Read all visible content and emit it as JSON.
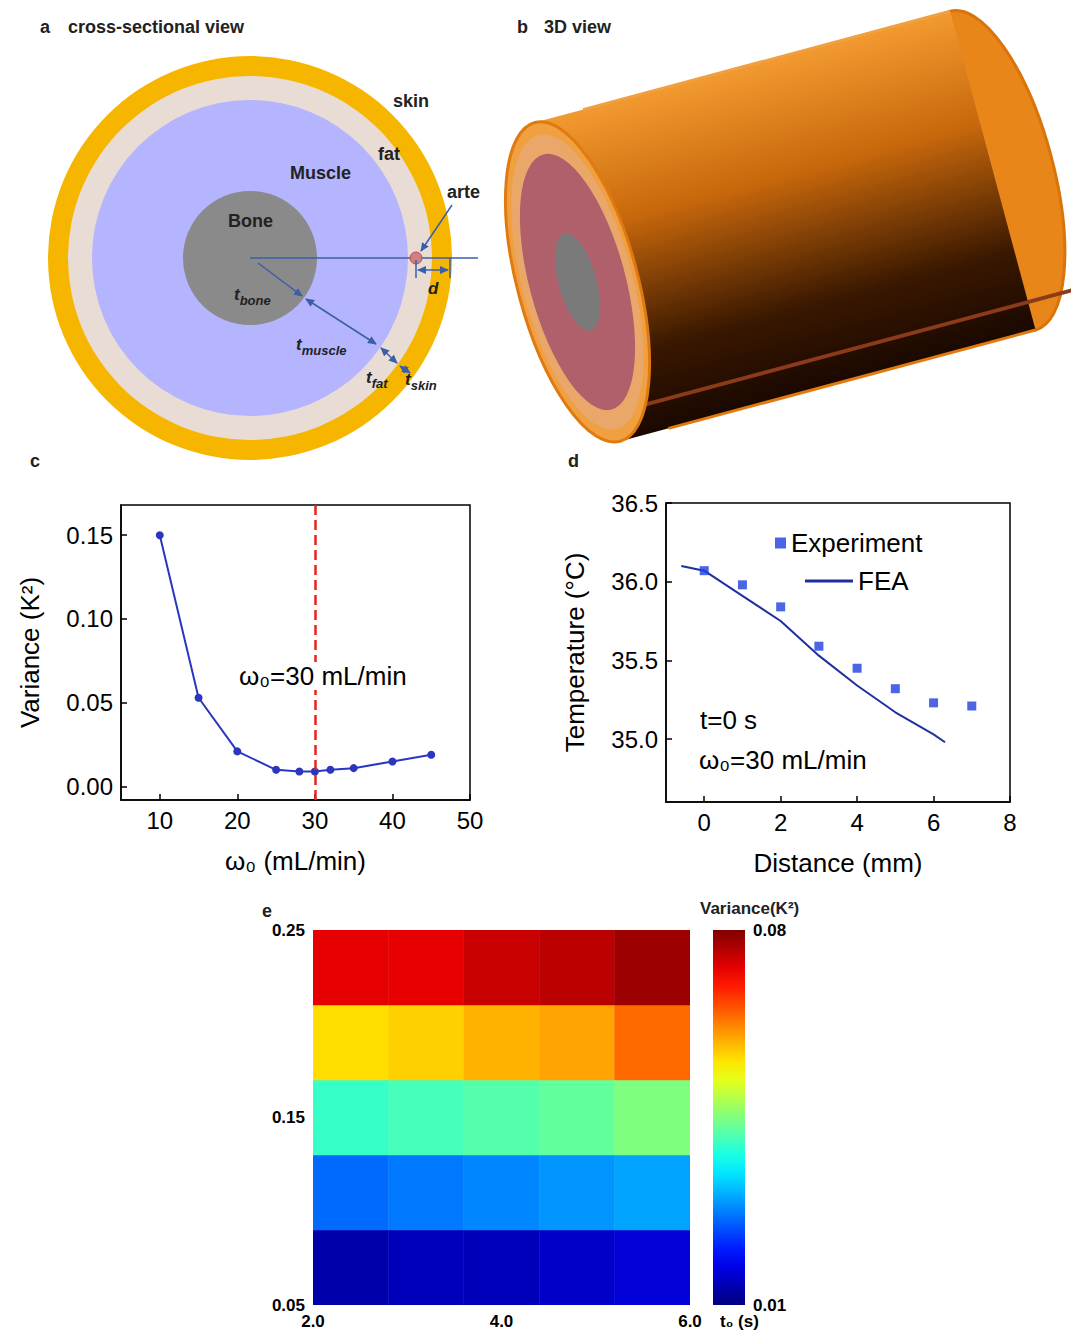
{
  "diagram": {
    "a": {
      "label": "a",
      "title": "cross-sectional view",
      "tissue_labels": {
        "skin": "skin",
        "fat": "fat",
        "muscle": "Muscle",
        "bone": "Bone",
        "artery": "arte"
      },
      "dimensions": {
        "t_bone": {
          "base": "t",
          "sub": "bone"
        },
        "t_muscle": {
          "base": "t",
          "sub": "muscle"
        },
        "t_fat": {
          "base": "t",
          "sub": "fat"
        },
        "t_skin": {
          "base": "t",
          "sub": "skin"
        },
        "d": {
          "base": "d"
        }
      }
    },
    "b": {
      "label": "b",
      "title": "3D view"
    }
  },
  "chart_data": [
    {
      "panel": "c",
      "type": "line",
      "x_label": "ω₀ (mL/min)",
      "y_label": "Variance (K²)",
      "x": [
        10,
        15,
        20,
        25,
        28,
        30,
        32,
        35,
        40,
        45
      ],
      "values": [
        0.15,
        0.053,
        0.021,
        0.01,
        0.009,
        0.009,
        0.01,
        0.011,
        0.015,
        0.019
      ],
      "color": "#2a35c0",
      "marker": "circle",
      "xlim": [
        5,
        50
      ],
      "xticks": [
        10,
        20,
        30,
        40,
        50
      ],
      "ylim": [
        -0.008,
        0.168
      ],
      "yticks": [
        {
          "value": 0,
          "label": "0.00"
        },
        {
          "value": 0.05,
          "label": "0.05"
        },
        {
          "value": 0.1,
          "label": "0.10"
        },
        {
          "value": 0.15,
          "label": "0.15"
        }
      ],
      "grid": false,
      "vline": {
        "x": 30,
        "color": "#e8241c",
        "line_style": "dashed"
      },
      "annotations": [
        {
          "text": "ω₀=30 mL/min"
        }
      ]
    },
    {
      "panel": "d",
      "type": "line",
      "x_label": "Distance (mm)",
      "y_label": "Temperature (°C)",
      "xlim": [
        -1,
        8
      ],
      "xticks": [
        0,
        2,
        4,
        6,
        8
      ],
      "ylim": [
        34.6,
        36.5
      ],
      "yticks": [
        {
          "value": 35,
          "label": "35.0"
        },
        {
          "value": 35.5,
          "label": "35.5"
        },
        {
          "value": 36,
          "label": "36.0"
        },
        {
          "value": 36.5,
          "label": "36.5"
        }
      ],
      "series": [
        {
          "name": "Experiment",
          "type": "scatter",
          "marker": "square",
          "color": "#1f3fe0",
          "x": [
            0,
            1,
            2,
            3,
            4,
            5,
            6,
            7
          ],
          "values": [
            36.07,
            35.98,
            35.84,
            35.59,
            35.45,
            35.32,
            35.23,
            35.21
          ]
        },
        {
          "name": "FEA",
          "type": "line",
          "line_style": "solid",
          "color": "#1f2fa0",
          "x": [
            -0.6,
            0,
            1,
            2,
            3,
            4,
            5,
            6,
            6.3
          ],
          "values": [
            36.1,
            36.07,
            35.91,
            35.75,
            35.53,
            35.34,
            35.17,
            35.03,
            34.98
          ]
        }
      ],
      "legend": "upper right",
      "grid": false,
      "annotations": [
        {
          "text": "t=0 s"
        },
        {
          "text": "ω₀=30 mL/min"
        }
      ]
    },
    {
      "panel": "e",
      "type": "heatmap",
      "x_label": "t₀ (s)",
      "xlim": [
        2,
        6
      ],
      "xticks": [
        {
          "value": 2,
          "label": "2.0"
        },
        {
          "value": 4,
          "label": "4.0"
        },
        {
          "value": 6,
          "label": "6.0"
        }
      ],
      "ylim": [
        0.05,
        0.25
      ],
      "yticks": [
        0.05,
        0.15,
        0.25
      ],
      "x_edges": [
        2,
        2.8,
        3.6,
        4.4,
        5.2,
        6
      ],
      "y_edges": [
        0.05,
        0.09,
        0.13,
        0.17,
        0.21,
        0.25
      ],
      "cells": [
        [
          0.013,
          0.014,
          0.014,
          0.015,
          0.016
        ],
        [
          0.026,
          0.027,
          0.028,
          0.029,
          0.03
        ],
        [
          0.04,
          0.041,
          0.042,
          0.043,
          0.045
        ],
        [
          0.056,
          0.057,
          0.059,
          0.06,
          0.064
        ],
        [
          0.073,
          0.073,
          0.075,
          0.076,
          0.078
        ]
      ],
      "colorbar": {
        "label": "Variance(K²)",
        "range": [
          0.01,
          0.08
        ],
        "ticks": [
          0.01,
          0.08
        ]
      },
      "grid": false
    }
  ]
}
